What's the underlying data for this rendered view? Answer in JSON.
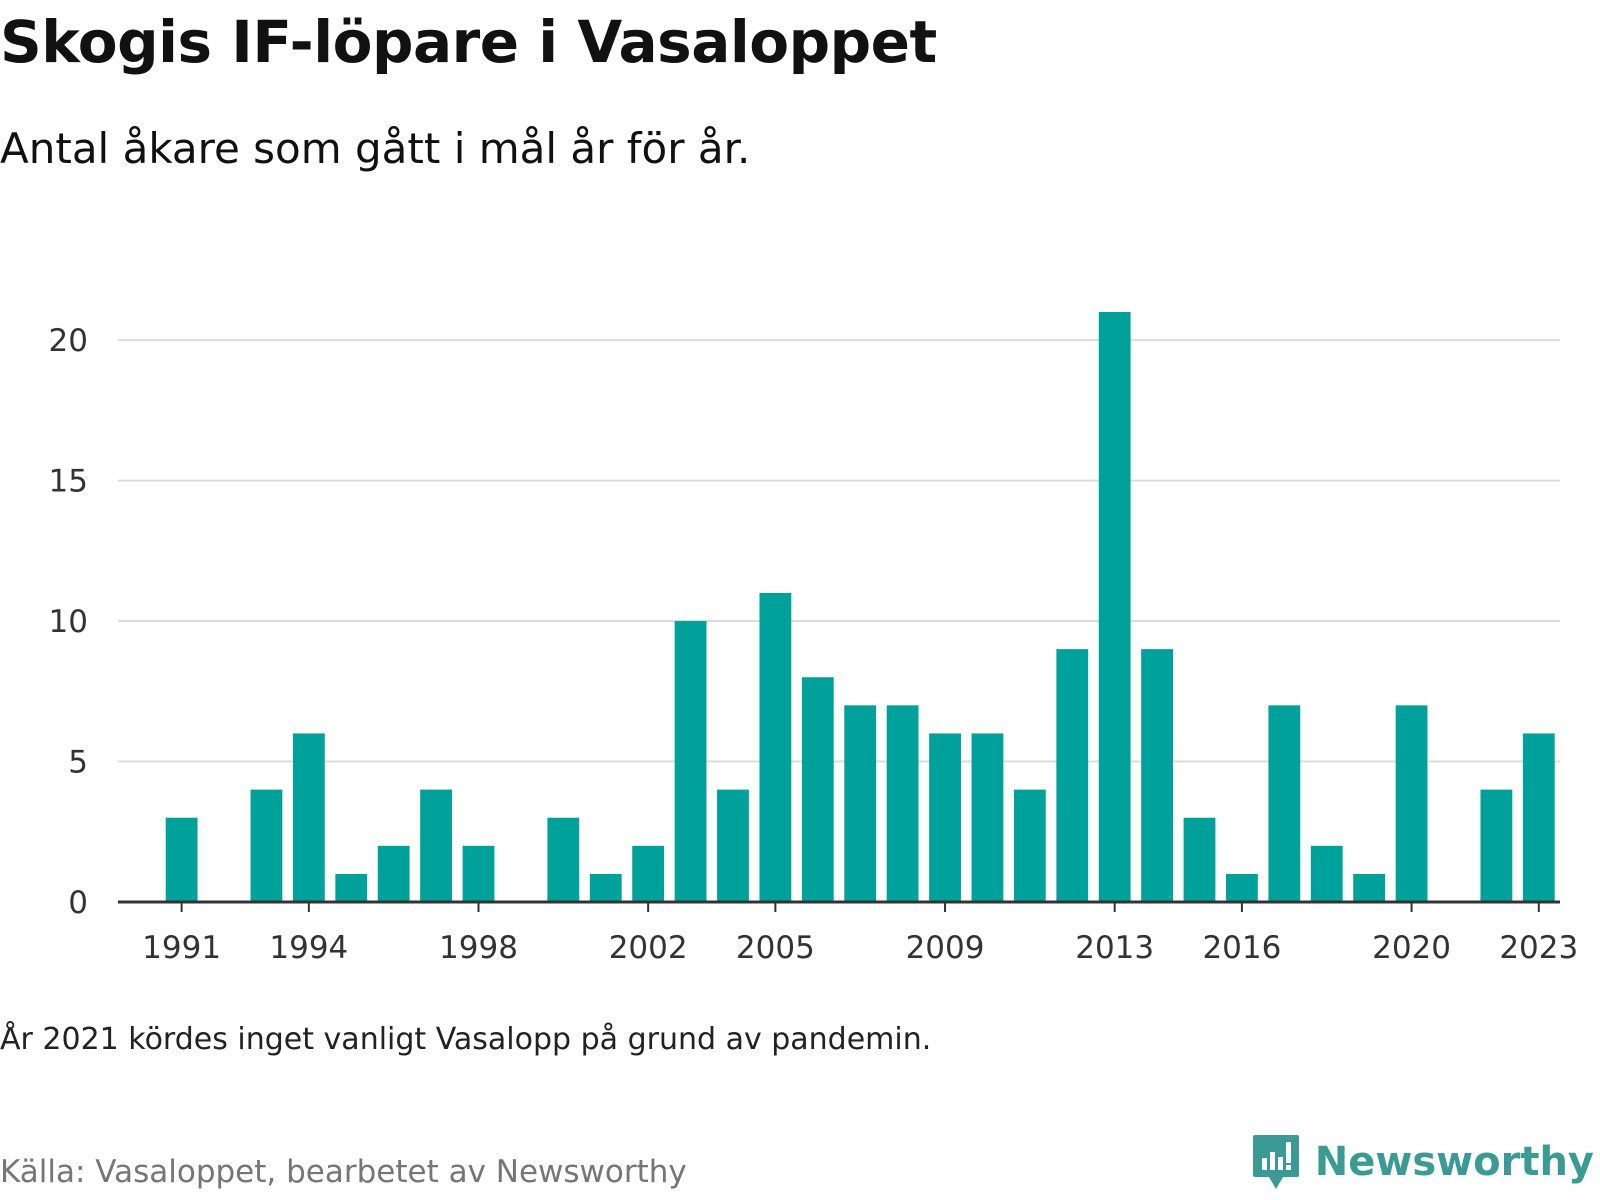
{
  "title": "Skogis IF-löpare i Vasaloppet",
  "subtitle": "Antal åkare som gått i mål år för år.",
  "note": "År 2021 kördes inget vanligt Vasalopp på grund av pandemin.",
  "source": "Källa: Vasaloppet, bearbetet av Newsworthy",
  "brand": {
    "name": "Newsworthy",
    "icon": "newsworthy-logo-icon",
    "color": "#3c9a94"
  },
  "chart_data": {
    "type": "bar",
    "title": "Skogis IF-löpare i Vasaloppet",
    "subtitle": "Antal åkare som gått i mål år för år.",
    "xlabel": "",
    "ylabel": "",
    "categories": [
      1990,
      1991,
      1992,
      1993,
      1994,
      1995,
      1996,
      1997,
      1998,
      1999,
      2000,
      2001,
      2002,
      2003,
      2004,
      2005,
      2006,
      2007,
      2008,
      2009,
      2010,
      2011,
      2012,
      2013,
      2014,
      2015,
      2016,
      2017,
      2018,
      2019,
      2020,
      2021,
      2022,
      2023
    ],
    "values": [
      null,
      3,
      null,
      4,
      6,
      1,
      2,
      4,
      2,
      null,
      3,
      1,
      2,
      10,
      4,
      11,
      8,
      7,
      7,
      6,
      6,
      4,
      9,
      21,
      9,
      3,
      1,
      7,
      2,
      1,
      7,
      null,
      4,
      6
    ],
    "x_tick_labels": [
      "1991",
      "1994",
      "1998",
      "2002",
      "2005",
      "2009",
      "2013",
      "2016",
      "2020",
      "2023"
    ],
    "y_ticks": [
      0,
      5,
      10,
      15,
      20
    ],
    "ylim": [
      0,
      21
    ],
    "grid": true,
    "bar_color": "#00a19a",
    "gridline_color": "#dcdcdc",
    "axis_color": "#333333"
  }
}
